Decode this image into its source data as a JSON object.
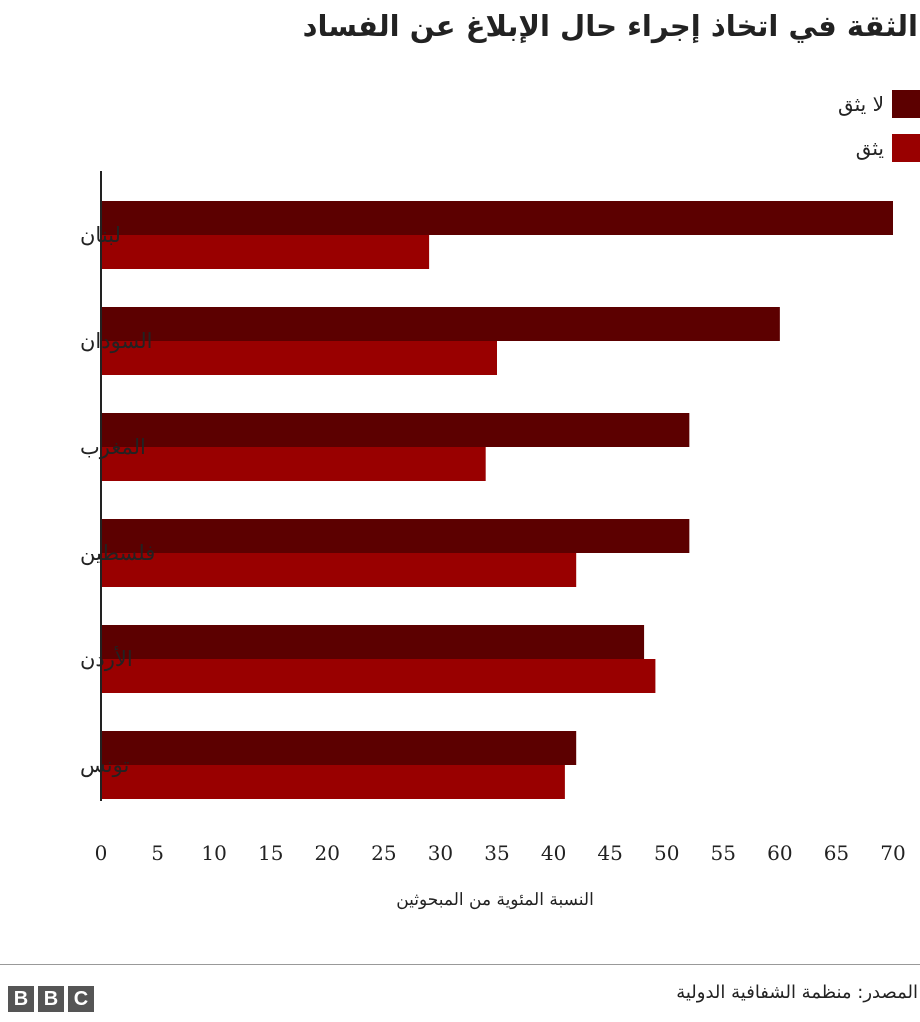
{
  "chart_data": {
    "type": "bar",
    "orientation": "horizontal",
    "title": "الثقة في اتخاذ إجراء حال الإبلاغ عن الفساد",
    "xlabel": "النسبة المئوية من المبحوثين",
    "ylabel": "",
    "xlim": [
      0,
      70
    ],
    "xticks": [
      "0",
      "5",
      "10",
      "15",
      "20",
      "25",
      "30",
      "35",
      "40",
      "45",
      "50",
      "55",
      "60",
      "65",
      "70"
    ],
    "categories": [
      "لبنان",
      "السودان",
      "المغرب",
      "فلسطين",
      "الأردن",
      "تونس"
    ],
    "series": [
      {
        "name": "لا يثق",
        "color": "#5c0000",
        "values": [
          70,
          60,
          52,
          52,
          48,
          42
        ]
      },
      {
        "name": "يثق",
        "color": "#990000",
        "values": [
          29,
          35,
          34,
          42,
          49,
          41
        ]
      }
    ],
    "grid": false,
    "legend": "top-right"
  },
  "footer": {
    "source": "المصدر: منظمة الشفافية الدولية",
    "logo_letters": [
      "B",
      "B",
      "C"
    ]
  }
}
